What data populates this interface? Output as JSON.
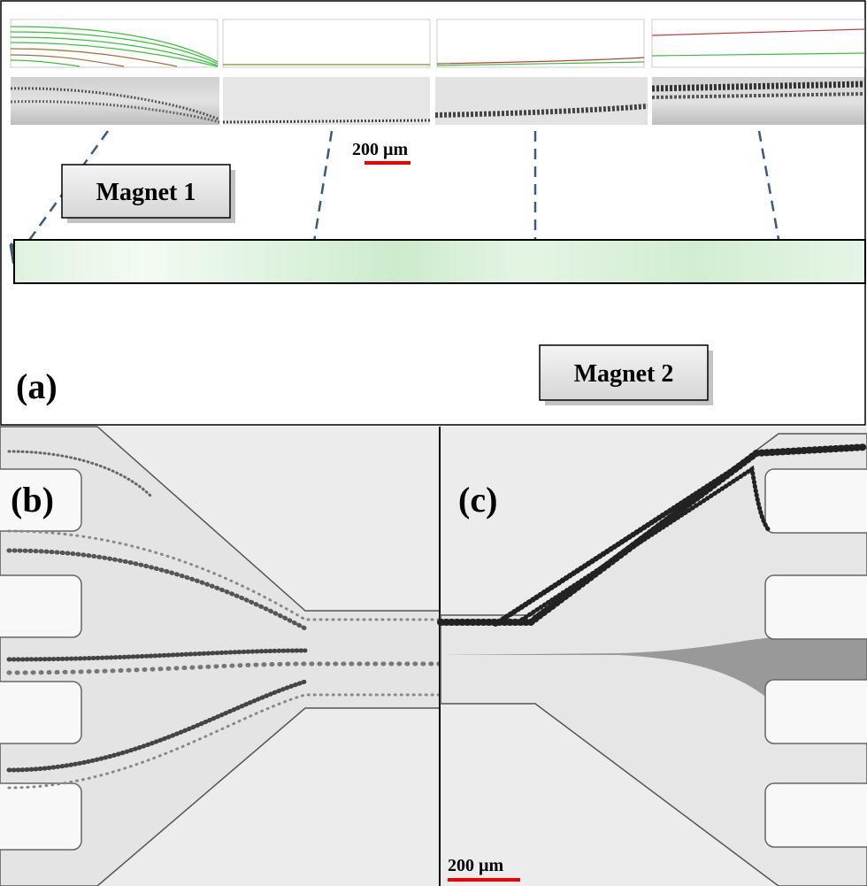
{
  "panel_a": {
    "label": "(a)",
    "scale_bar": "200 µm",
    "magnets": [
      "Magnet 1",
      "Magnet 2"
    ]
  },
  "panel_b": {
    "label": "(b)"
  },
  "panel_c": {
    "label": "(c)",
    "scale_bar": "200 µm"
  }
}
